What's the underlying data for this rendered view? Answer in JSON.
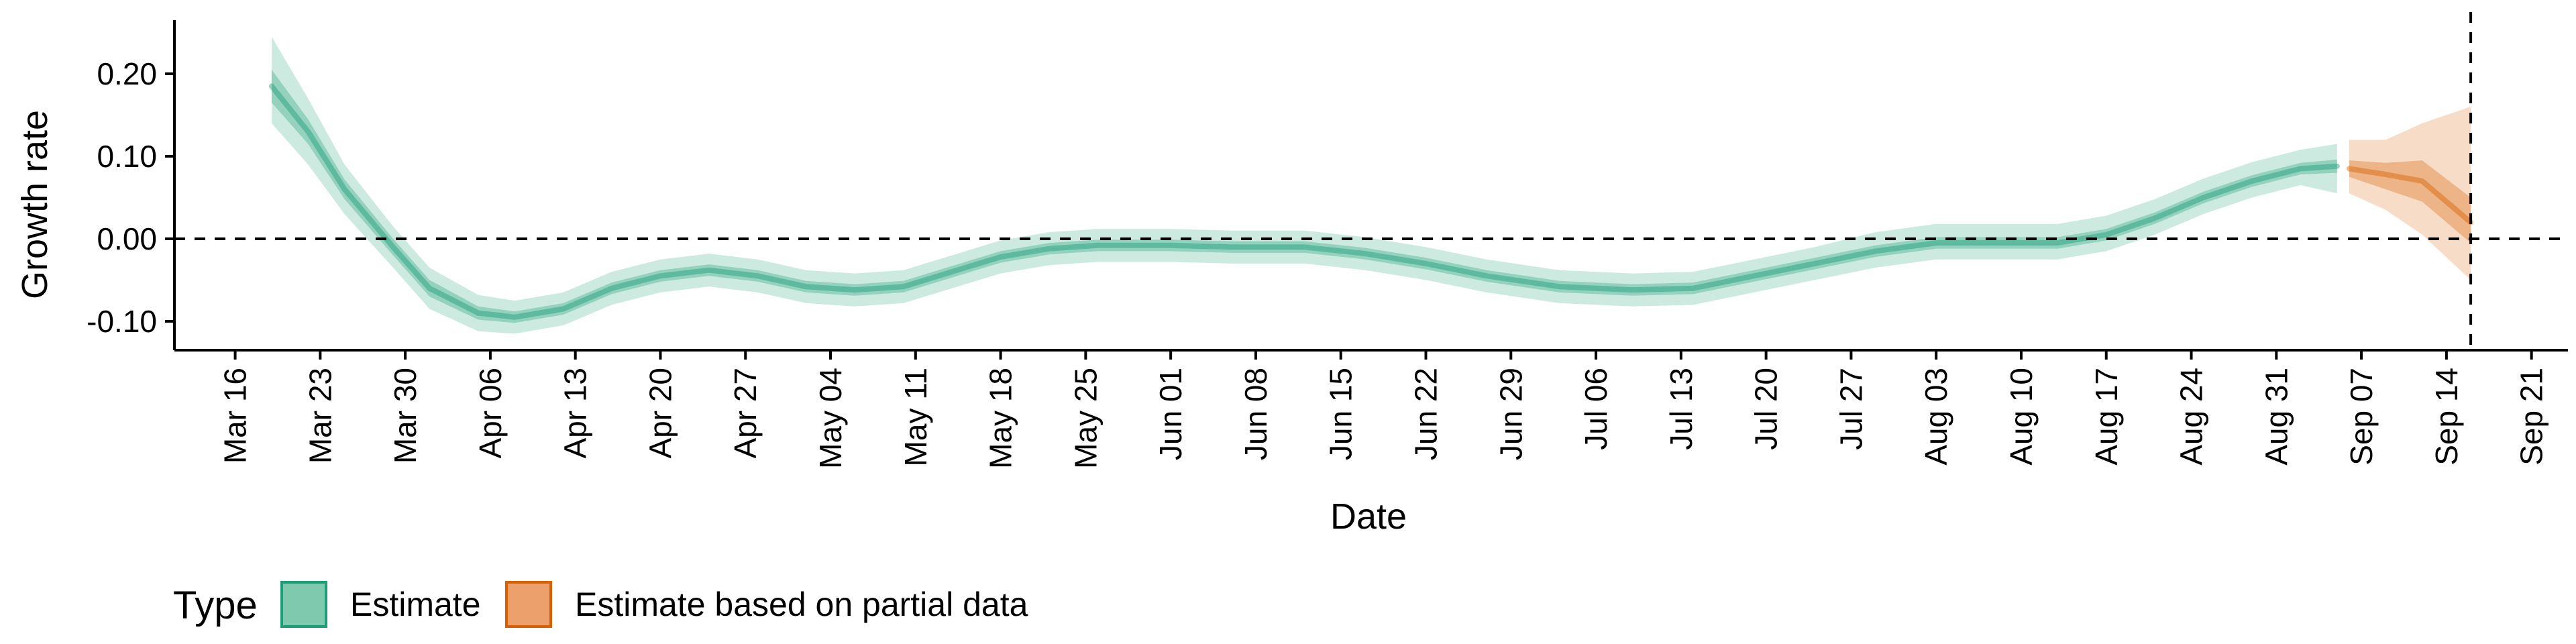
{
  "chart_data": {
    "type": "area",
    "xlabel": "Date",
    "ylabel": "Growth rate",
    "x_tick_labels": [
      "Mar 16",
      "Mar 23",
      "Mar 30",
      "Apr 06",
      "Apr 13",
      "Apr 20",
      "Apr 27",
      "May 04",
      "May 11",
      "May 18",
      "May 25",
      "Jun 01",
      "Jun 08",
      "Jun 15",
      "Jun 22",
      "Jun 29",
      "Jul 06",
      "Jul 13",
      "Jul 20",
      "Jul 27",
      "Aug 03",
      "Aug 10",
      "Aug 17",
      "Aug 24",
      "Aug 31",
      "Sep 07",
      "Sep 14",
      "Sep 21"
    ],
    "x_range": [
      "2020-03-11",
      "2020-09-24"
    ],
    "y_ticks": [
      -0.1,
      0.0,
      0.1,
      0.2
    ],
    "y_tick_labels": [
      "-0.10",
      "0.00",
      "0.10",
      "0.20"
    ],
    "ylim": [
      -0.135,
      0.265
    ],
    "reference_lines": {
      "horizontal_y": 0.0,
      "vertical_date": "2020-09-16"
    },
    "grid": false,
    "legend": {
      "title": "Type",
      "position": "bottom-left",
      "entries": [
        {
          "label": "Estimate",
          "fill": "#7fc9af",
          "stroke": "#1b9e77"
        },
        {
          "label": "Estimate based on partial data",
          "fill": "#eca06b",
          "stroke": "#d95f02"
        }
      ]
    },
    "series": [
      {
        "name": "Estimate",
        "color": "#1b9e77",
        "points": [
          {
            "date": "2020-03-19",
            "median": 0.185,
            "lower50": 0.165,
            "upper50": 0.205,
            "lower90": 0.14,
            "upper90": 0.245
          },
          {
            "date": "2020-03-22",
            "median": 0.13,
            "lower50": 0.115,
            "upper50": 0.145,
            "lower90": 0.09,
            "upper90": 0.17
          },
          {
            "date": "2020-03-25",
            "median": 0.06,
            "lower50": 0.048,
            "upper50": 0.072,
            "lower90": 0.03,
            "upper90": 0.09
          },
          {
            "date": "2020-03-29",
            "median": -0.01,
            "lower50": -0.02,
            "upper50": 0.0,
            "lower90": -0.035,
            "upper90": 0.015
          },
          {
            "date": "2020-04-01",
            "median": -0.06,
            "lower50": -0.07,
            "upper50": -0.05,
            "lower90": -0.085,
            "upper90": -0.035
          },
          {
            "date": "2020-04-05",
            "median": -0.09,
            "lower50": -0.098,
            "upper50": -0.082,
            "lower90": -0.112,
            "upper90": -0.068
          },
          {
            "date": "2020-04-08",
            "median": -0.095,
            "lower50": -0.102,
            "upper50": -0.088,
            "lower90": -0.115,
            "upper90": -0.075
          },
          {
            "date": "2020-04-12",
            "median": -0.085,
            "lower50": -0.092,
            "upper50": -0.078,
            "lower90": -0.105,
            "upper90": -0.065
          },
          {
            "date": "2020-04-16",
            "median": -0.06,
            "lower50": -0.067,
            "upper50": -0.053,
            "lower90": -0.08,
            "upper90": -0.04
          },
          {
            "date": "2020-04-20",
            "median": -0.045,
            "lower50": -0.052,
            "upper50": -0.038,
            "lower90": -0.065,
            "upper90": -0.025
          },
          {
            "date": "2020-04-24",
            "median": -0.038,
            "lower50": -0.045,
            "upper50": -0.031,
            "lower90": -0.058,
            "upper90": -0.018
          },
          {
            "date": "2020-04-28",
            "median": -0.045,
            "lower50": -0.052,
            "upper50": -0.038,
            "lower90": -0.065,
            "upper90": -0.025
          },
          {
            "date": "2020-05-02",
            "median": -0.058,
            "lower50": -0.065,
            "upper50": -0.051,
            "lower90": -0.078,
            "upper90": -0.038
          },
          {
            "date": "2020-05-06",
            "median": -0.062,
            "lower50": -0.069,
            "upper50": -0.055,
            "lower90": -0.082,
            "upper90": -0.042
          },
          {
            "date": "2020-05-10",
            "median": -0.058,
            "lower50": -0.065,
            "upper50": -0.051,
            "lower90": -0.078,
            "upper90": -0.038
          },
          {
            "date": "2020-05-14",
            "median": -0.04,
            "lower50": -0.047,
            "upper50": -0.033,
            "lower90": -0.06,
            "upper90": -0.02
          },
          {
            "date": "2020-05-18",
            "median": -0.022,
            "lower50": -0.029,
            "upper50": -0.015,
            "lower90": -0.042,
            "upper90": -0.002
          },
          {
            "date": "2020-05-22",
            "median": -0.012,
            "lower50": -0.019,
            "upper50": -0.005,
            "lower90": -0.032,
            "upper90": 0.008
          },
          {
            "date": "2020-05-26",
            "median": -0.008,
            "lower50": -0.015,
            "upper50": -0.001,
            "lower90": -0.028,
            "upper90": 0.012
          },
          {
            "date": "2020-06-01",
            "median": -0.008,
            "lower50": -0.015,
            "upper50": -0.001,
            "lower90": -0.028,
            "upper90": 0.012
          },
          {
            "date": "2020-06-06",
            "median": -0.01,
            "lower50": -0.017,
            "upper50": -0.003,
            "lower90": -0.03,
            "upper90": 0.01
          },
          {
            "date": "2020-06-12",
            "median": -0.01,
            "lower50": -0.017,
            "upper50": -0.003,
            "lower90": -0.03,
            "upper90": 0.01
          },
          {
            "date": "2020-06-17",
            "median": -0.018,
            "lower50": -0.025,
            "upper50": -0.011,
            "lower90": -0.038,
            "upper90": 0.002
          },
          {
            "date": "2020-06-22",
            "median": -0.03,
            "lower50": -0.037,
            "upper50": -0.023,
            "lower90": -0.05,
            "upper90": -0.01
          },
          {
            "date": "2020-06-27",
            "median": -0.045,
            "lower50": -0.052,
            "upper50": -0.038,
            "lower90": -0.065,
            "upper90": -0.025
          },
          {
            "date": "2020-07-03",
            "median": -0.058,
            "lower50": -0.065,
            "upper50": -0.051,
            "lower90": -0.078,
            "upper90": -0.038
          },
          {
            "date": "2020-07-09",
            "median": -0.062,
            "lower50": -0.069,
            "upper50": -0.055,
            "lower90": -0.082,
            "upper90": -0.042
          },
          {
            "date": "2020-07-14",
            "median": -0.06,
            "lower50": -0.067,
            "upper50": -0.053,
            "lower90": -0.08,
            "upper90": -0.04
          },
          {
            "date": "2020-07-19",
            "median": -0.045,
            "lower50": -0.052,
            "upper50": -0.038,
            "lower90": -0.065,
            "upper90": -0.025
          },
          {
            "date": "2020-07-24",
            "median": -0.03,
            "lower50": -0.037,
            "upper50": -0.023,
            "lower90": -0.05,
            "upper90": -0.01
          },
          {
            "date": "2020-07-29",
            "median": -0.015,
            "lower50": -0.022,
            "upper50": -0.008,
            "lower90": -0.035,
            "upper90": 0.008
          },
          {
            "date": "2020-08-03",
            "median": -0.005,
            "lower50": -0.012,
            "upper50": 0.002,
            "lower90": -0.025,
            "upper90": 0.018
          },
          {
            "date": "2020-08-08",
            "median": -0.005,
            "lower50": -0.012,
            "upper50": 0.002,
            "lower90": -0.025,
            "upper90": 0.018
          },
          {
            "date": "2020-08-13",
            "median": -0.005,
            "lower50": -0.012,
            "upper50": 0.002,
            "lower90": -0.025,
            "upper90": 0.018
          },
          {
            "date": "2020-08-17",
            "median": 0.005,
            "lower50": -0.002,
            "upper50": 0.012,
            "lower90": -0.015,
            "upper90": 0.028
          },
          {
            "date": "2020-08-21",
            "median": 0.025,
            "lower50": 0.018,
            "upper50": 0.032,
            "lower90": 0.005,
            "upper90": 0.048
          },
          {
            "date": "2020-08-25",
            "median": 0.05,
            "lower50": 0.043,
            "upper50": 0.057,
            "lower90": 0.03,
            "upper90": 0.073
          },
          {
            "date": "2020-08-29",
            "median": 0.07,
            "lower50": 0.063,
            "upper50": 0.077,
            "lower90": 0.05,
            "upper90": 0.093
          },
          {
            "date": "2020-09-02",
            "median": 0.085,
            "lower50": 0.078,
            "upper50": 0.092,
            "lower90": 0.065,
            "upper90": 0.108
          },
          {
            "date": "2020-09-05",
            "median": 0.088,
            "lower50": 0.08,
            "upper50": 0.096,
            "lower90": 0.055,
            "upper90": 0.115
          }
        ]
      },
      {
        "name": "Estimate based on partial data",
        "color": "#d95f02",
        "points": [
          {
            "date": "2020-09-06",
            "median": 0.085,
            "lower50": 0.075,
            "upper50": 0.095,
            "lower90": 0.055,
            "upper90": 0.12
          },
          {
            "date": "2020-09-09",
            "median": 0.078,
            "lower50": 0.06,
            "upper50": 0.092,
            "lower90": 0.035,
            "upper90": 0.12
          },
          {
            "date": "2020-09-12",
            "median": 0.07,
            "lower50": 0.045,
            "upper50": 0.095,
            "lower90": 0.005,
            "upper90": 0.14
          },
          {
            "date": "2020-09-16",
            "median": 0.02,
            "lower50": -0.005,
            "upper50": 0.05,
            "lower90": -0.05,
            "upper90": 0.16
          }
        ]
      }
    ]
  }
}
